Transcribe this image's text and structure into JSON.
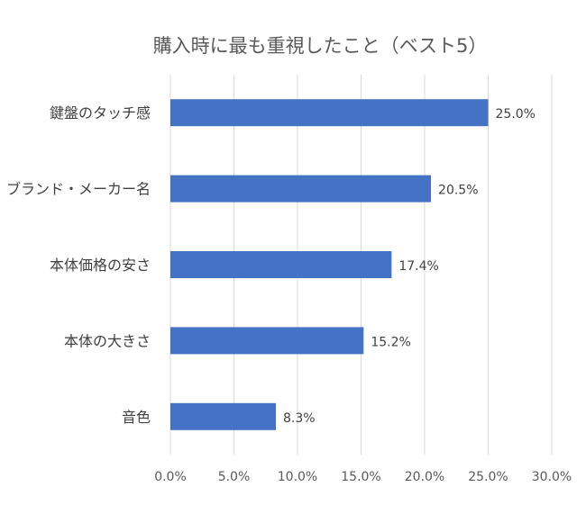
{
  "chart_data": {
    "type": "bar",
    "orientation": "horizontal",
    "title": "購入時に最も重視したこと（ベスト5）",
    "categories": [
      "鍵盤のタッチ感",
      "ブランド・メーカー名",
      "本体価格の安さ",
      "本体の大きさ",
      "音色"
    ],
    "values": [
      25.0,
      20.5,
      17.4,
      15.2,
      8.3
    ],
    "data_labels": [
      "25.0%",
      "20.5%",
      "17.4%",
      "15.2%",
      "8.3%"
    ],
    "xlim": [
      0,
      30
    ],
    "x_ticks": [
      0,
      5,
      10,
      15,
      20,
      25,
      30
    ],
    "x_tick_labels": [
      "0.0%",
      "5.0%",
      "10.0%",
      "15.0%",
      "20.0%",
      "25.0%",
      "30.0%"
    ],
    "xlabel": "",
    "ylabel": "",
    "grid": "vertical",
    "legend": "none",
    "bar_color": "#4472C4"
  }
}
